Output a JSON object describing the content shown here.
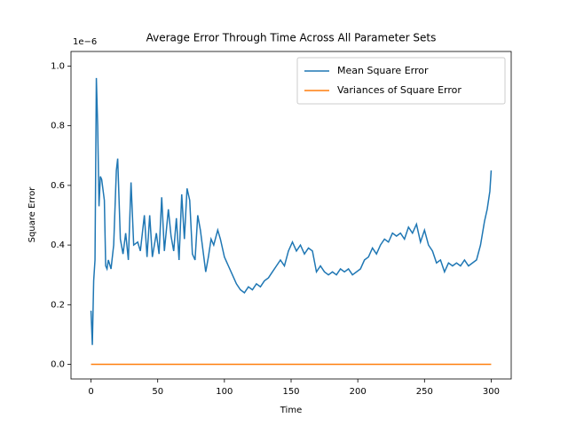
{
  "chart_data": {
    "type": "line",
    "title": "Average Error Through Time Across All Parameter Sets",
    "xlabel": "Time",
    "ylabel": "Square Error",
    "y_offset_label": "1e−6",
    "xlim": [
      -15,
      315
    ],
    "ylim": [
      -0.049,
      1.049
    ],
    "xticks": [
      0,
      50,
      100,
      150,
      200,
      250,
      300
    ],
    "yticks": [
      {
        "value": 0,
        "label": "0.0"
      },
      {
        "value": 0.2,
        "label": "0.2"
      },
      {
        "value": 0.4,
        "label": "0.4"
      },
      {
        "value": 0.6,
        "label": "0.6"
      },
      {
        "value": 0.8,
        "label": "0.8"
      },
      {
        "value": 1,
        "label": "1.0"
      }
    ],
    "legend": "upper right",
    "series": [
      {
        "name": "Mean Square Error",
        "color": "#1f77b4",
        "x": [
          0,
          1,
          2,
          3,
          4,
          5,
          6,
          7,
          8,
          10,
          11,
          12,
          13,
          15,
          17,
          19,
          20,
          22,
          24,
          26,
          28,
          30,
          32,
          35,
          37,
          40,
          42,
          44,
          46,
          49,
          51,
          53,
          55,
          58,
          60,
          62,
          64,
          66,
          68,
          70,
          72,
          74,
          76,
          78,
          80,
          82,
          84,
          86,
          88,
          90,
          92,
          95,
          97,
          100,
          103,
          106,
          109,
          112,
          115,
          118,
          121,
          124,
          127,
          130,
          133,
          136,
          139,
          142,
          145,
          148,
          151,
          154,
          157,
          160,
          163,
          166,
          169,
          172,
          175,
          178,
          181,
          184,
          187,
          190,
          193,
          196,
          199,
          202,
          205,
          208,
          211,
          214,
          217,
          220,
          223,
          226,
          229,
          232,
          235,
          238,
          241,
          244,
          247,
          250,
          253,
          256,
          259,
          262,
          265,
          268,
          271,
          274,
          277,
          280,
          283,
          286,
          289,
          292,
          295,
          297,
          299,
          300
        ],
        "values": [
          0.18,
          0.065,
          0.28,
          0.35,
          0.96,
          0.8,
          0.53,
          0.63,
          0.62,
          0.55,
          0.33,
          0.32,
          0.35,
          0.32,
          0.4,
          0.65,
          0.69,
          0.42,
          0.37,
          0.44,
          0.35,
          0.61,
          0.4,
          0.41,
          0.38,
          0.5,
          0.36,
          0.5,
          0.36,
          0.44,
          0.37,
          0.56,
          0.38,
          0.52,
          0.43,
          0.38,
          0.49,
          0.35,
          0.57,
          0.42,
          0.59,
          0.55,
          0.37,
          0.35,
          0.5,
          0.45,
          0.38,
          0.31,
          0.36,
          0.42,
          0.4,
          0.45,
          0.42,
          0.36,
          0.33,
          0.3,
          0.27,
          0.25,
          0.24,
          0.26,
          0.25,
          0.27,
          0.26,
          0.28,
          0.29,
          0.31,
          0.33,
          0.35,
          0.33,
          0.38,
          0.41,
          0.38,
          0.4,
          0.37,
          0.39,
          0.38,
          0.31,
          0.33,
          0.31,
          0.3,
          0.31,
          0.3,
          0.32,
          0.31,
          0.32,
          0.3,
          0.31,
          0.32,
          0.35,
          0.36,
          0.39,
          0.37,
          0.4,
          0.42,
          0.41,
          0.44,
          0.43,
          0.44,
          0.42,
          0.46,
          0.44,
          0.47,
          0.41,
          0.45,
          0.4,
          0.38,
          0.34,
          0.35,
          0.31,
          0.34,
          0.33,
          0.34,
          0.33,
          0.35,
          0.33,
          0.34,
          0.35,
          0.4,
          0.48,
          0.52,
          0.58,
          0.65
        ]
      },
      {
        "name": "Variances of Square Error",
        "color": "#ff7f0e",
        "x": [
          0,
          300
        ],
        "values": [
          0,
          0
        ]
      }
    ]
  }
}
